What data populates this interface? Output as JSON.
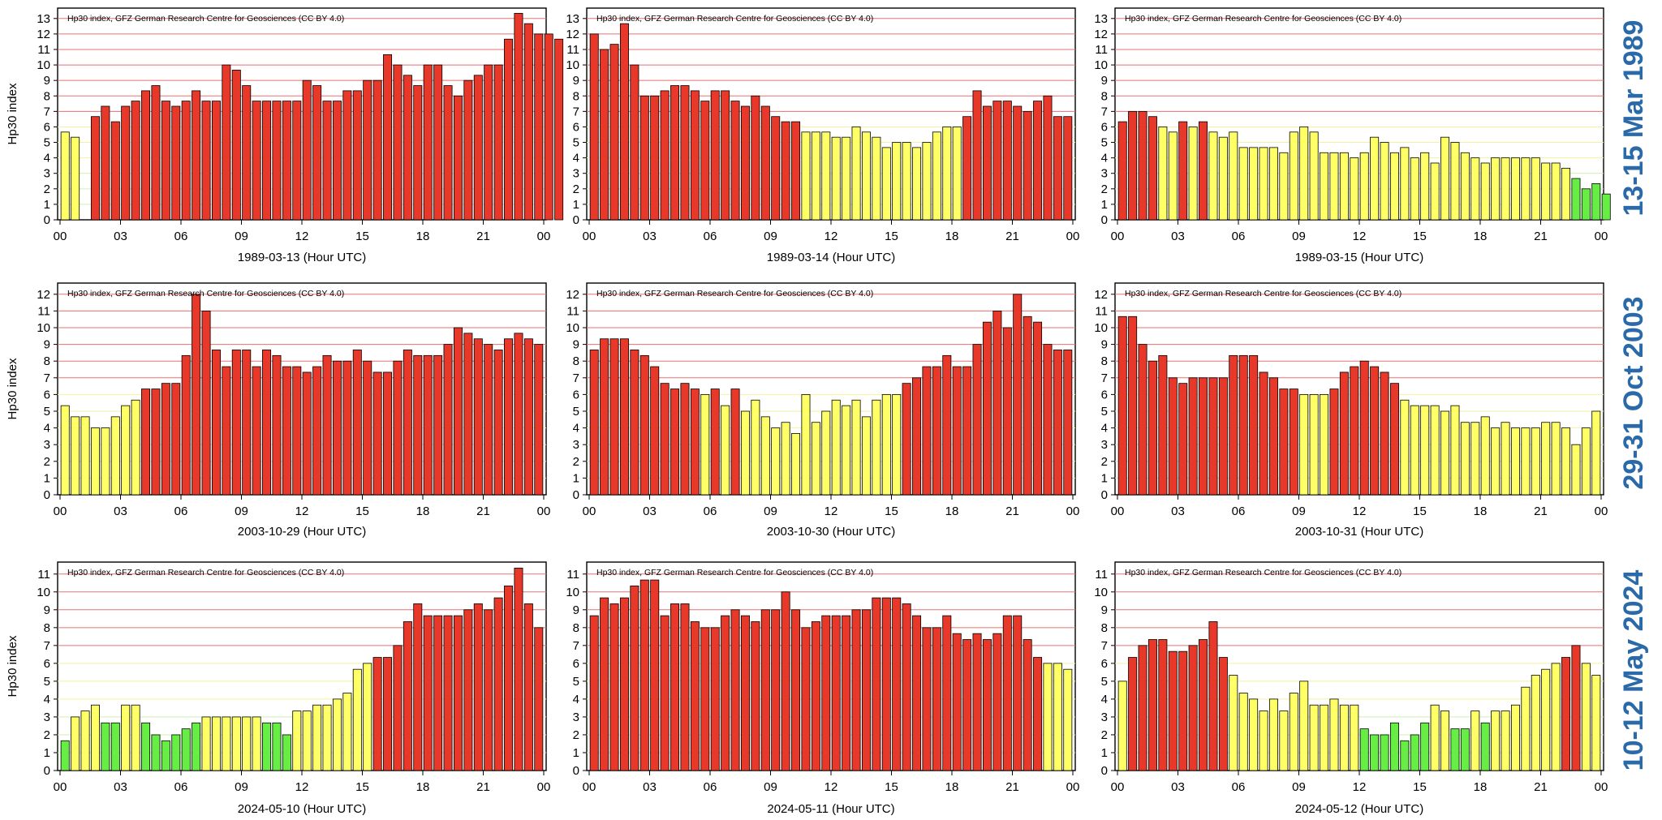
{
  "colors": {
    "red": "#e8382a",
    "yellow": "#ffff66",
    "green": "#66ee44",
    "grid_red": "#e87070",
    "grid_yellow": "#f2f2a0",
    "grid_green": "#cfefb0",
    "side_label": "#2a6aa8"
  },
  "y_axis_label": "Hp30 index",
  "row_labels": [
    "13-15 Mar 1989",
    "29-31 Oct 2003",
    "10-12 May 2024"
  ],
  "chart_data": [
    {
      "type": "bar",
      "title": "Hp30 index, GFZ German Research Centre for Geosciences (CC BY 4.0)",
      "xlabel": "1989-03-13 (Hour UTC)",
      "ylabel": "Hp30 index",
      "ylim": [
        0,
        13.67
      ],
      "yticks": [
        "0",
        "1",
        "2",
        "3",
        "4",
        "5",
        "6",
        "7",
        "8",
        "9",
        "10",
        "11",
        "12",
        "13"
      ],
      "xticks": [
        "00",
        "03",
        "06",
        "09",
        "12",
        "15",
        "18",
        "21",
        "00"
      ],
      "values": [
        5.667,
        5.333,
        0,
        6.667,
        7.333,
        6.333,
        7.333,
        7.667,
        8.333,
        8.667,
        7.667,
        7.333,
        7.667,
        8.333,
        7.667,
        7.667,
        10,
        9.667,
        8.667,
        7.667,
        7.667,
        7.667,
        7.667,
        7.667,
        9,
        8.667,
        7.667,
        7.667,
        8.333,
        8.333,
        9,
        9,
        10.667,
        10,
        9.333,
        8.667,
        10,
        10,
        8.667,
        8,
        9,
        9.333,
        10,
        10,
        11.667,
        13.333,
        12.667,
        12,
        12,
        11.667
      ]
    },
    {
      "type": "bar",
      "title": "Hp30 index, GFZ German Research Centre for Geosciences (CC BY 4.0)",
      "xlabel": "1989-03-14 (Hour UTC)",
      "ylabel": "Hp30 index",
      "ylim": [
        0,
        13.67
      ],
      "yticks": [
        "0",
        "1",
        "2",
        "3",
        "4",
        "5",
        "6",
        "7",
        "8",
        "9",
        "10",
        "11",
        "12",
        "13"
      ],
      "xticks": [
        "00",
        "03",
        "06",
        "09",
        "12",
        "15",
        "18",
        "21",
        "00"
      ],
      "values": [
        12,
        11,
        11.333,
        12.667,
        10,
        8,
        8,
        8.333,
        8.667,
        8.667,
        8.333,
        7.667,
        8.333,
        8.333,
        7.667,
        7.333,
        8,
        7.333,
        6.667,
        6.333,
        6.333,
        5.667,
        5.667,
        5.667,
        5.333,
        5.333,
        6,
        5.667,
        5.333,
        4.667,
        5,
        5,
        4.667,
        5,
        5.667,
        6,
        6,
        6.667,
        8.333,
        7.333,
        7.667,
        7.667,
        7.333,
        7,
        7.667,
        8,
        6.667,
        6.667
      ]
    },
    {
      "type": "bar",
      "title": "Hp30 index, GFZ German Research Centre for Geosciences (CC BY 4.0)",
      "xlabel": "1989-03-15 (Hour UTC)",
      "ylabel": "Hp30 index",
      "ylim": [
        0,
        13.67
      ],
      "yticks": [
        "0",
        "1",
        "2",
        "3",
        "4",
        "5",
        "6",
        "7",
        "8",
        "9",
        "10",
        "11",
        "12",
        "13"
      ],
      "xticks": [
        "00",
        "03",
        "06",
        "09",
        "12",
        "15",
        "18",
        "21",
        "00"
      ],
      "values": [
        6.333,
        7,
        7,
        6.667,
        6,
        5.667,
        6.333,
        6,
        6.333,
        5.667,
        5.333,
        5.667,
        4.667,
        4.667,
        4.667,
        4.667,
        4.333,
        5.667,
        6,
        5.667,
        4.333,
        4.333,
        4.333,
        4,
        4.333,
        5.333,
        5,
        4.333,
        4.667,
        4,
        4.333,
        3.667,
        5.333,
        5,
        4.333,
        4,
        3.667,
        4,
        4,
        4,
        4,
        4,
        3.667,
        3.667,
        3.333,
        2.667,
        2,
        2.333,
        1.667
      ]
    },
    {
      "type": "bar",
      "title": "Hp30 index, GFZ German Research Centre for Geosciences (CC BY 4.0)",
      "xlabel": "2003-10-29 (Hour UTC)",
      "ylabel": "Hp30 index",
      "ylim": [
        0,
        12.67
      ],
      "yticks": [
        "0",
        "1",
        "2",
        "3",
        "4",
        "5",
        "6",
        "7",
        "8",
        "9",
        "10",
        "11",
        "12"
      ],
      "xticks": [
        "00",
        "03",
        "06",
        "09",
        "12",
        "15",
        "18",
        "21",
        "00"
      ],
      "values": [
        5.333,
        4.667,
        4.667,
        4,
        4,
        4.667,
        5.333,
        5.667,
        6.333,
        6.333,
        6.667,
        6.667,
        8.333,
        12,
        11,
        8.667,
        7.667,
        8.667,
        8.667,
        7.667,
        8.667,
        8.333,
        7.667,
        7.667,
        7.333,
        7.667,
        8.333,
        8,
        8,
        8.667,
        8,
        7.333,
        7.333,
        8,
        8.667,
        8.333,
        8.333,
        8.333,
        9,
        10,
        9.667,
        9.333,
        9,
        8.667,
        9.333,
        9.667,
        9.333,
        9
      ]
    },
    {
      "type": "bar",
      "title": "Hp30 index, GFZ German Research Centre for Geosciences (CC BY 4.0)",
      "xlabel": "2003-10-30 (Hour UTC)",
      "ylabel": "Hp30 index",
      "ylim": [
        0,
        12.67
      ],
      "yticks": [
        "0",
        "1",
        "2",
        "3",
        "4",
        "5",
        "6",
        "7",
        "8",
        "9",
        "10",
        "11",
        "12"
      ],
      "xticks": [
        "00",
        "03",
        "06",
        "09",
        "12",
        "15",
        "18",
        "21",
        "00"
      ],
      "values": [
        8.667,
        9.333,
        9.333,
        9.333,
        8.667,
        8.333,
        7.667,
        6.667,
        6.333,
        6.667,
        6.333,
        6,
        6.333,
        5.333,
        6.333,
        5,
        5.667,
        4.667,
        4,
        4.333,
        3.667,
        6,
        4.333,
        5,
        5.667,
        5.333,
        5.667,
        4.667,
        5.667,
        6,
        6,
        6.667,
        7,
        7.667,
        7.667,
        8.333,
        7.667,
        7.667,
        9,
        10.333,
        11,
        10,
        12,
        10.667,
        10.333,
        9,
        8.667,
        8.667
      ]
    },
    {
      "type": "bar",
      "title": "Hp30 index, GFZ German Research Centre for Geosciences (CC BY 4.0)",
      "xlabel": "2003-10-31 (Hour UTC)",
      "ylabel": "Hp30 index",
      "ylim": [
        0,
        12.67
      ],
      "yticks": [
        "0",
        "1",
        "2",
        "3",
        "4",
        "5",
        "6",
        "7",
        "8",
        "9",
        "10",
        "11",
        "12"
      ],
      "xticks": [
        "00",
        "03",
        "06",
        "09",
        "12",
        "15",
        "18",
        "21",
        "00"
      ],
      "values": [
        10.667,
        10.667,
        9,
        8,
        8.333,
        7,
        6.667,
        7,
        7,
        7,
        7,
        8.333,
        8.333,
        8.333,
        7.333,
        7,
        6.333,
        6.333,
        6,
        6,
        6,
        6.333,
        7.333,
        7.667,
        8,
        7.667,
        7.333,
        6.667,
        5.667,
        5.333,
        5.333,
        5.333,
        5,
        5.333,
        4.333,
        4.333,
        4.667,
        4,
        4.333,
        4,
        4,
        4,
        4.333,
        4.333,
        4,
        3,
        4,
        5
      ]
    },
    {
      "type": "bar",
      "title": "Hp30 index, GFZ German Research Centre for Geosciences (CC BY 4.0)",
      "xlabel": "2024-05-10 (Hour UTC)",
      "ylabel": "Hp30 index",
      "ylim": [
        0,
        11.67
      ],
      "yticks": [
        "0",
        "1",
        "2",
        "3",
        "4",
        "5",
        "6",
        "7",
        "8",
        "9",
        "10",
        "11"
      ],
      "xticks": [
        "00",
        "03",
        "06",
        "09",
        "12",
        "15",
        "18",
        "21",
        "00"
      ],
      "values": [
        1.667,
        3,
        3.333,
        3.667,
        2.667,
        2.667,
        3.667,
        3.667,
        2.667,
        2,
        1.667,
        2,
        2.333,
        2.667,
        3,
        3,
        3,
        3,
        3,
        3,
        2.667,
        2.667,
        2,
        3.333,
        3.333,
        3.667,
        3.667,
        4,
        4.333,
        5.667,
        6,
        6.333,
        6.333,
        7,
        8.333,
        9.333,
        8.667,
        8.667,
        8.667,
        8.667,
        9,
        9.333,
        9,
        9.667,
        10.333,
        11.333,
        9.333,
        8
      ]
    },
    {
      "type": "bar",
      "title": "Hp30 index, GFZ German Research Centre for Geosciences (CC BY 4.0)",
      "xlabel": "2024-05-11 (Hour UTC)",
      "ylabel": "Hp30 index",
      "ylim": [
        0,
        11.67
      ],
      "yticks": [
        "0",
        "1",
        "2",
        "3",
        "4",
        "5",
        "6",
        "7",
        "8",
        "9",
        "10",
        "11"
      ],
      "xticks": [
        "00",
        "03",
        "06",
        "09",
        "12",
        "15",
        "18",
        "21",
        "00"
      ],
      "values": [
        8.667,
        9.667,
        9.333,
        9.667,
        10.333,
        10.667,
        10.667,
        8.667,
        9.333,
        9.333,
        8.333,
        8,
        8,
        8.667,
        9,
        8.667,
        8.333,
        9,
        9,
        10,
        9,
        8,
        8.333,
        8.667,
        8.667,
        8.667,
        9,
        9,
        9.667,
        9.667,
        9.667,
        9.333,
        8.667,
        8,
        8,
        8.667,
        7.667,
        7.333,
        7.667,
        7.333,
        7.667,
        8.667,
        8.667,
        7.333,
        6.333,
        6,
        6,
        5.667
      ]
    },
    {
      "type": "bar",
      "title": "Hp30 index, GFZ German Research Centre for Geosciences (CC BY 4.0)",
      "xlabel": "2024-05-12 (Hour UTC)",
      "ylabel": "Hp30 index",
      "ylim": [
        0,
        11.67
      ],
      "yticks": [
        "0",
        "1",
        "2",
        "3",
        "4",
        "5",
        "6",
        "7",
        "8",
        "9",
        "10",
        "11"
      ],
      "xticks": [
        "00",
        "03",
        "06",
        "09",
        "12",
        "15",
        "18",
        "21",
        "00"
      ],
      "values": [
        5,
        6.333,
        7,
        7.333,
        7.333,
        6.667,
        6.667,
        7,
        7.333,
        8.333,
        6.333,
        5.333,
        4.333,
        4,
        3.333,
        4,
        3.333,
        4.333,
        5,
        3.667,
        3.667,
        4,
        3.667,
        3.667,
        2.333,
        2,
        2,
        2.667,
        1.667,
        2,
        2.667,
        3.667,
        3.333,
        2.333,
        2.333,
        3.333,
        2.667,
        3.333,
        3.333,
        3.667,
        4.667,
        5.333,
        5.667,
        6,
        6.333,
        7,
        6,
        5.333
      ]
    }
  ]
}
